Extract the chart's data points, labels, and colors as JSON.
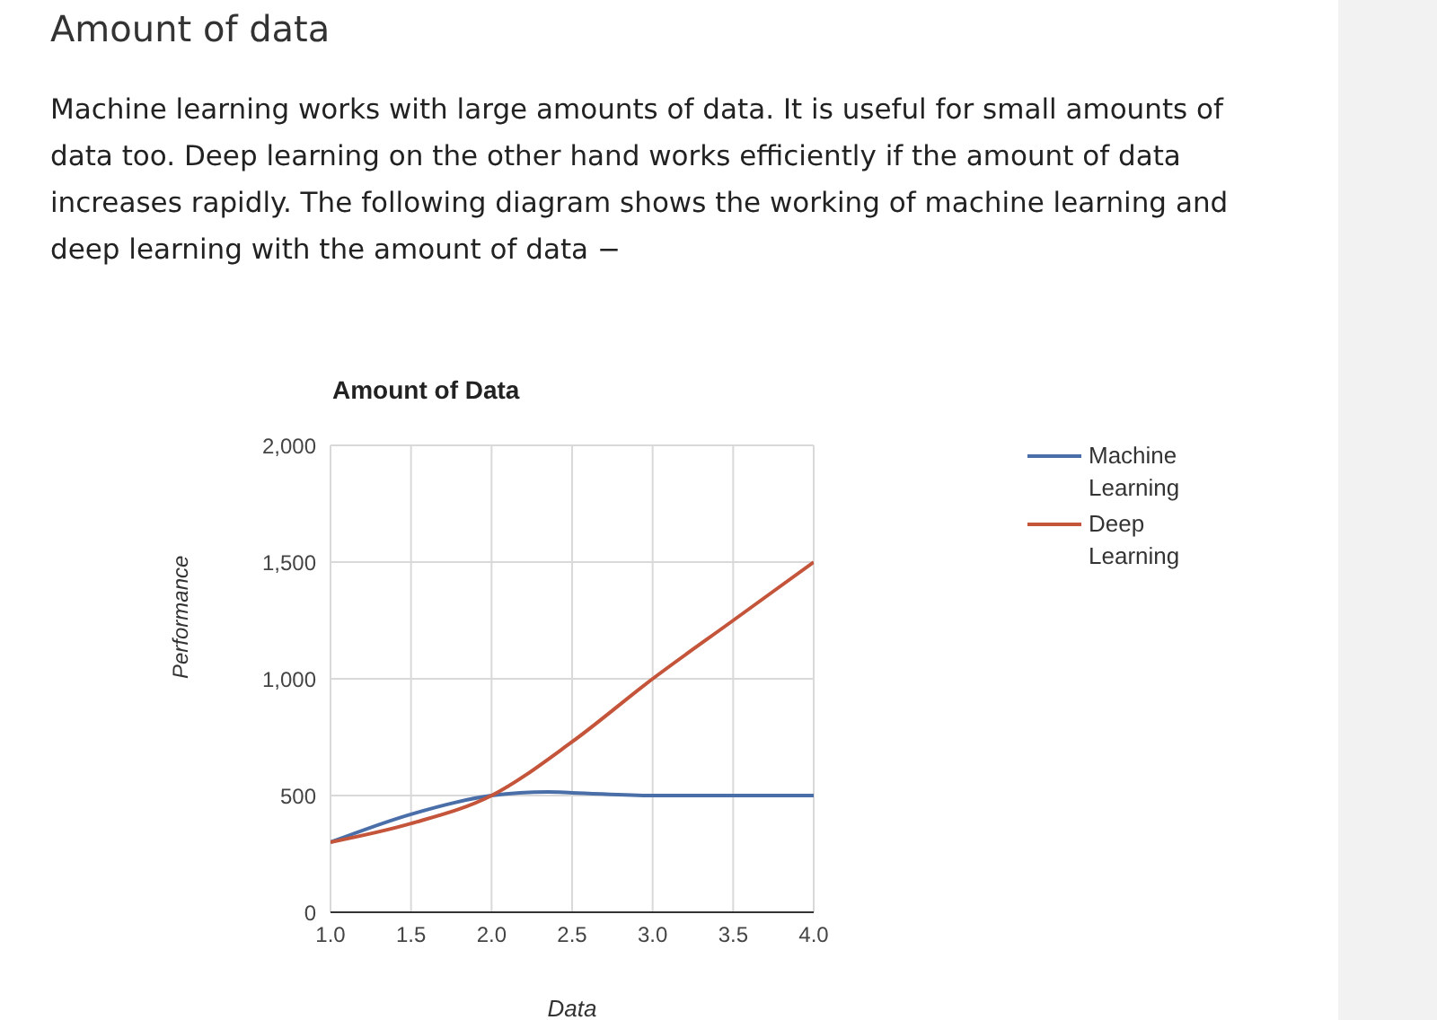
{
  "chart_data": {
    "type": "line",
    "title": "Amount of Data",
    "xlabel": "Data",
    "ylabel": "Performance",
    "annotations": [
      "Amount of data",
      "Machine learning works with large amounts of data. It is useful for small amounts of data too. Deep learning on the other hand works efficiently if the amount of data increases rapidly. The following diagram shows the working of machine learning and deep learning with the amount of data −"
    ],
    "series": [
      {
        "name": "Machine Learning",
        "color": "#4a6fa8",
        "x": [
          1.0,
          1.5,
          2.0,
          2.35,
          2.5,
          3.0,
          3.5,
          4.0
        ],
        "values": [
          300,
          420,
          500,
          515,
          512,
          500,
          500,
          500
        ]
      },
      {
        "name": "Deep Learning",
        "color": "#c4543a",
        "x": [
          1.0,
          1.5,
          2.0,
          2.5,
          3.0,
          3.5,
          4.0
        ],
        "values": [
          300,
          380,
          500,
          730,
          1000,
          1250,
          1500
        ]
      }
    ],
    "xlim": [
      1.0,
      4.0
    ],
    "xticks": [
      {
        "value": 1,
        "label": "1.0"
      },
      1.5,
      {
        "value": 2,
        "label": "2.0"
      },
      2.5,
      {
        "value": 3,
        "label": "3.0"
      },
      3.5,
      {
        "value": 4,
        "label": "4.0"
      }
    ],
    "ylim": [
      0,
      2000
    ],
    "yticks": [
      0,
      {
        "value": 500,
        "label": "500"
      },
      {
        "value": 1000,
        "label": "1,000"
      },
      {
        "value": 1500,
        "label": "1,500"
      },
      {
        "value": 2000,
        "label": "2,000"
      }
    ],
    "grid": true,
    "legend": "top right",
    "marker": "none",
    "line_style": "solid"
  }
}
